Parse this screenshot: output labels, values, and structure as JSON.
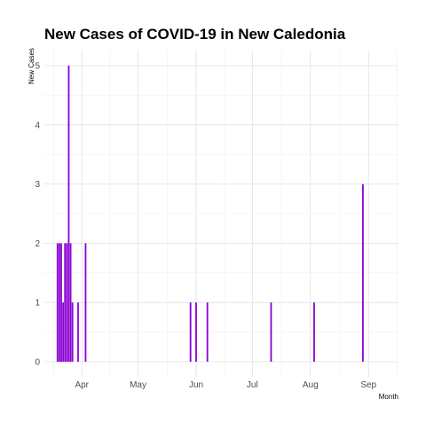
{
  "chart_data": {
    "type": "bar",
    "title": "New Cases of COVID-19 in New Caledonia",
    "xlabel": "Month",
    "ylabel": "New Cases",
    "ylim": [
      0,
      5
    ],
    "yticks": [
      "0",
      "1",
      "2",
      "3",
      "4",
      "5"
    ],
    "xticks": [
      {
        "label": "Apr",
        "date": "2020-04-01"
      },
      {
        "label": "May",
        "date": "2020-05-01"
      },
      {
        "label": "Jun",
        "date": "2020-06-01"
      },
      {
        "label": "Jul",
        "date": "2020-07-01"
      },
      {
        "label": "Aug",
        "date": "2020-08-01"
      },
      {
        "label": "Sep",
        "date": "2020-09-01"
      }
    ],
    "xlim": [
      "2020-03-12",
      "2020-09-17"
    ],
    "bar_color": "#8A00D4",
    "grid": true,
    "points": [
      {
        "date": "2020-03-19",
        "value": 2
      },
      {
        "date": "2020-03-20",
        "value": 2
      },
      {
        "date": "2020-03-21",
        "value": 2
      },
      {
        "date": "2020-03-22",
        "value": 1
      },
      {
        "date": "2020-03-23",
        "value": 2
      },
      {
        "date": "2020-03-24",
        "value": 2
      },
      {
        "date": "2020-03-25",
        "value": 5
      },
      {
        "date": "2020-03-26",
        "value": 2
      },
      {
        "date": "2020-03-27",
        "value": 1
      },
      {
        "date": "2020-03-30",
        "value": 1
      },
      {
        "date": "2020-04-03",
        "value": 2
      },
      {
        "date": "2020-05-29",
        "value": 1
      },
      {
        "date": "2020-06-01",
        "value": 1
      },
      {
        "date": "2020-06-07",
        "value": 1
      },
      {
        "date": "2020-07-11",
        "value": 1
      },
      {
        "date": "2020-08-03",
        "value": 1
      },
      {
        "date": "2020-08-29",
        "value": 3
      }
    ]
  }
}
